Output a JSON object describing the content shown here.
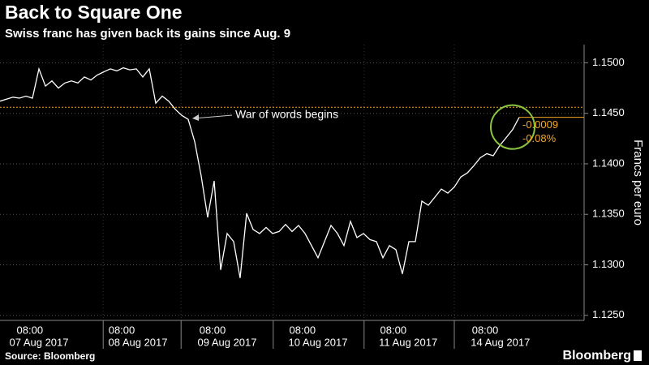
{
  "chart_data": {
    "type": "line",
    "title": "Back to Square One",
    "subtitle": "Swiss franc has given back its gains since Aug. 9",
    "y_axis_label": "Francs per euro",
    "source": "Source: Bloomberg",
    "logo": "Bloomberg",
    "color": "#ffffff",
    "values": [
      1.1462,
      1.1464,
      1.1466,
      1.1465,
      1.1467,
      1.1465,
      1.1494,
      1.1477,
      1.1482,
      1.1475,
      1.148,
      1.1482,
      1.148,
      1.1486,
      1.1483,
      1.1488,
      1.1491,
      1.1494,
      1.1492,
      1.1495,
      1.1493,
      1.1494,
      1.1486,
      1.1494,
      1.146,
      1.1467,
      1.1462,
      1.1454,
      1.1448,
      1.1444,
      1.1422,
      1.1388,
      1.1347,
      1.1383,
      1.1295,
      1.1331,
      1.1323,
      1.1287,
      1.1351,
      1.1335,
      1.1331,
      1.1337,
      1.1331,
      1.1333,
      1.134,
      1.1333,
      1.1339,
      1.1331,
      1.1319,
      1.1307,
      1.1323,
      1.1339,
      1.1331,
      1.1319,
      1.1343,
      1.1327,
      1.1331,
      1.1325,
      1.1323,
      1.1307,
      1.1319,
      1.1315,
      1.1291,
      1.1323,
      1.1323,
      1.1363,
      1.1359,
      1.1367,
      1.1375,
      1.1371,
      1.1377,
      1.1387,
      1.1391,
      1.1398,
      1.1406,
      1.141,
      1.1408,
      1.1418,
      1.1426,
      1.1434,
      1.1446
    ],
    "xlim": [
      0,
      90
    ],
    "xticks": [
      {
        "value": 4.6,
        "label": "08:00"
      },
      {
        "value": 18.75,
        "label": "08:00"
      },
      {
        "value": 32.75,
        "label": "08:00"
      },
      {
        "value": 46.6,
        "label": "08:00"
      },
      {
        "value": 60.6,
        "label": "08:00"
      },
      {
        "value": 74.75,
        "label": "08:00"
      }
    ],
    "xdates": [
      {
        "value": 6,
        "label": "07 Aug 2017"
      },
      {
        "value": 21.25,
        "label": "08 Aug 2017"
      },
      {
        "value": 35,
        "label": "09 Aug 2017"
      },
      {
        "value": 49,
        "label": "10 Aug 2017"
      },
      {
        "value": 62.9,
        "label": "11 Aug 2017"
      },
      {
        "value": 77.1,
        "label": "14 Aug 2017"
      }
    ],
    "xminor_ticks": [
      15.9,
      27.9,
      42.1,
      56.1,
      70
    ],
    "ylim": [
      1.1245,
      1.1518
    ],
    "yticks": [
      {
        "value": 1.125,
        "label": "1.1250"
      },
      {
        "value": 1.13,
        "label": "1.1300"
      },
      {
        "value": 1.135,
        "label": "1.1350"
      },
      {
        "value": 1.14,
        "label": "1.1400"
      },
      {
        "value": 1.145,
        "label": "1.1450"
      },
      {
        "value": 1.15,
        "label": "1.1500"
      }
    ],
    "grid": true,
    "reference_line": {
      "value": 1.1456,
      "color": "#f5a623"
    },
    "annotation": "War of words begins",
    "change": {
      "value": -0.0009,
      "label": "-0.0009"
    },
    "change_pct": {
      "value": -0.08,
      "label": "-0.08%"
    }
  }
}
